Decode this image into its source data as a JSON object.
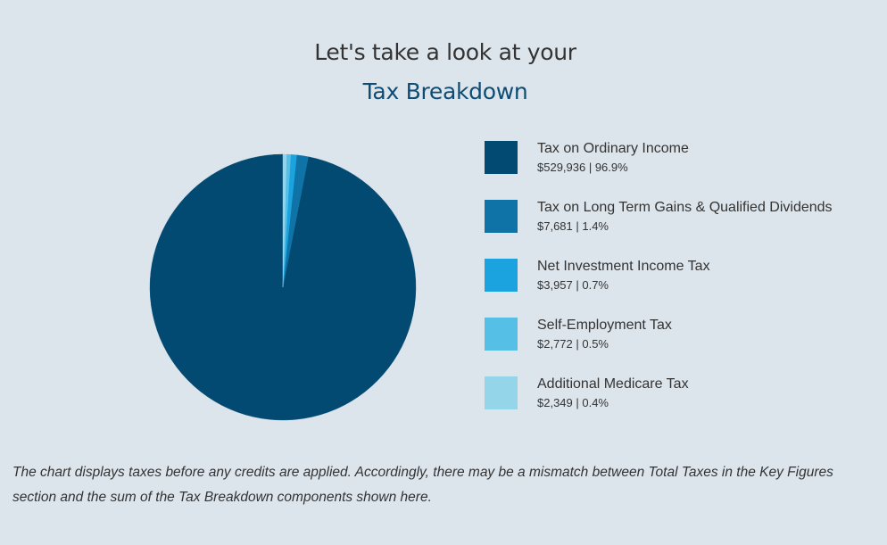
{
  "header": {
    "line1": "Let's take a look at your",
    "line2": "Tax Breakdown"
  },
  "chart_data": {
    "type": "pie",
    "categories": [
      "Tax on Ordinary Income",
      "Tax on Long Term Gains & Qualified Dividends",
      "Net Investment Income Tax",
      "Self-Employment Tax",
      "Additional Medicare Tax"
    ],
    "values": [
      529936,
      7681,
      3957,
      2772,
      2349
    ],
    "percents": [
      96.9,
      1.4,
      0.7,
      0.5,
      0.4
    ],
    "colors": [
      "#034a72",
      "#0f73a8",
      "#1aa3df",
      "#55bfe6",
      "#95d5ea"
    ],
    "legend_placement": "right"
  },
  "legend": [
    {
      "label": "Tax on Ordinary Income",
      "value": "$529,936 | 96.9%"
    },
    {
      "label": "Tax on Long Term Gains & Qualified Dividends",
      "value": "$7,681 | 1.4%"
    },
    {
      "label": "Net Investment Income Tax",
      "value": "$3,957 | 0.7%"
    },
    {
      "label": "Self-Employment Tax",
      "value": "$2,772 | 0.5%"
    },
    {
      "label": "Additional Medicare Tax",
      "value": "$2,349 | 0.4%"
    }
  ],
  "footnote": "The chart displays taxes before any credits are applied. Accordingly, there may be a mismatch between Total Taxes in the Key Figures section and the sum of the Tax Breakdown components shown here."
}
